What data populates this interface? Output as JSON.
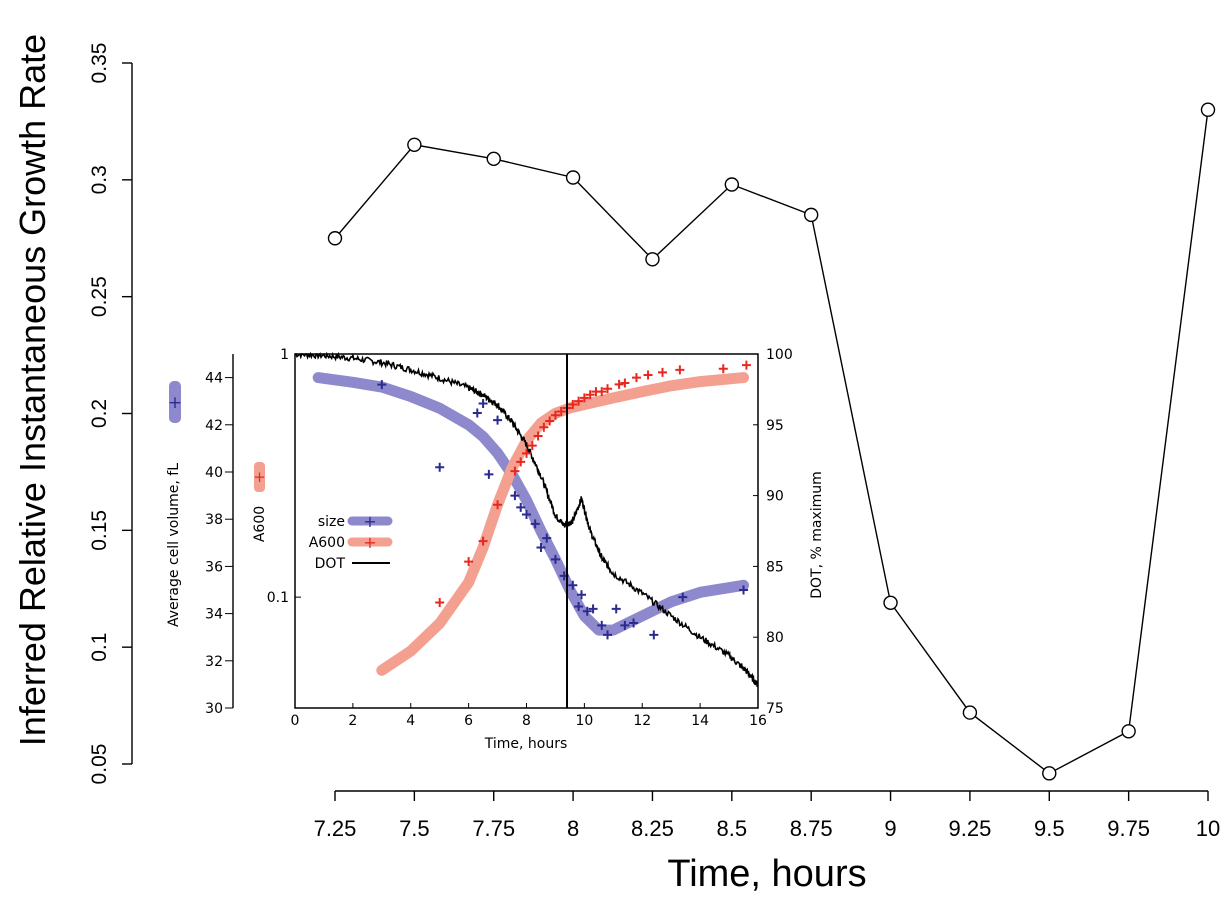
{
  "chart_data": [
    {
      "type": "line",
      "xlabel": "Time, hours",
      "ylabel": "Inferred Relative Instantaneous Growth Rate",
      "x_ticks": [
        "7.25",
        "7.5",
        "7.75",
        "8",
        "8.25",
        "8.5",
        "8.75",
        "9",
        "9.25",
        "9.5",
        "9.75",
        "10"
      ],
      "y_ticks": [
        "0.05",
        "0.1",
        "0.15",
        "0.2",
        "0.25",
        "0.3",
        "0.35"
      ],
      "xlim": [
        7.25,
        10
      ],
      "ylim": [
        0.05,
        0.35
      ],
      "grid": false,
      "series": [
        {
          "marker": "open-circle",
          "color": "#000000",
          "x": [
            7.25,
            7.5,
            7.75,
            8,
            8.25,
            8.5,
            8.75,
            9,
            9.25,
            9.5,
            9.75,
            10
          ],
          "y": [
            0.275,
            0.315,
            0.309,
            0.301,
            0.266,
            0.298,
            0.285,
            0.119,
            0.072,
            0.046,
            0.064,
            0.33
          ]
        }
      ]
    },
    {
      "type": "line",
      "xlabel": "Time, hours",
      "ylabel_left_outer": "Average cell volume, fL",
      "ylabel_left_inner": "A600",
      "ylabel_right": "DOT, % maximum",
      "x_ticks": [
        "0",
        "2",
        "4",
        "6",
        "8",
        "10",
        "12",
        "14",
        "16"
      ],
      "xlim": [
        0,
        16
      ],
      "volume_ticks": [
        "30",
        "32",
        "34",
        "36",
        "38",
        "40",
        "42",
        "44"
      ],
      "volume_lim": [
        30,
        45
      ],
      "a600_ticks": [
        "1",
        "0.1"
      ],
      "a600_scale": "log",
      "a600_lim": [
        0.035,
        1
      ],
      "dot_ticks": [
        "75",
        "80",
        "85",
        "90",
        "95",
        "100"
      ],
      "dot_lim": [
        75,
        100
      ],
      "vertical_line_x": 9.4,
      "legend": {
        "position": "left-middle",
        "entries": [
          "size",
          "A600",
          "DOT"
        ]
      },
      "colors": {
        "size": "#2b2b8f",
        "size_fit": "#8e88cc",
        "a600": "#e8281e",
        "a600_fit": "#f4a090",
        "dot": "#000000"
      },
      "size_points": {
        "x": [
          3,
          5,
          6.3,
          6.5,
          6.7,
          7,
          7.6,
          7.8,
          8,
          8.3,
          8.5,
          8.7,
          9.0,
          9.3,
          9.6,
          9.8,
          9.9,
          10.1,
          10.3,
          10.6,
          10.8,
          11.1,
          11.4,
          11.7,
          12.4,
          13.4,
          15.5
        ],
        "y": [
          43.7,
          40.2,
          42.5,
          42.9,
          39.9,
          42.2,
          39.0,
          38.5,
          38.2,
          37.8,
          36.8,
          37.2,
          36.3,
          35.6,
          35.2,
          34.3,
          34.8,
          34.1,
          34.2,
          33.5,
          33.1,
          34.2,
          33.5,
          33.6,
          33.1,
          34.7,
          35.0
        ]
      },
      "size_fit": {
        "x": [
          0.8,
          2,
          3,
          4,
          5,
          6,
          6.5,
          7,
          7.5,
          8,
          8.5,
          9,
          9.5,
          10,
          10.5,
          11,
          12,
          13,
          14,
          15.5
        ],
        "y": [
          44.0,
          43.8,
          43.6,
          43.2,
          42.7,
          42.0,
          41.5,
          40.8,
          39.9,
          38.8,
          37.5,
          36.3,
          35.0,
          33.9,
          33.3,
          33.3,
          33.9,
          34.5,
          34.9,
          35.2
        ]
      },
      "a600_points": {
        "x": [
          5,
          6,
          6.5,
          7,
          7.6,
          7.8,
          8,
          8.2,
          8.4,
          8.6,
          8.8,
          9.0,
          9.2,
          9.4,
          9.6,
          9.8,
          10,
          10.2,
          10.4,
          10.6,
          10.8,
          11.2,
          11.4,
          11.8,
          12.2,
          12.7,
          13.3,
          14.8,
          15.6
        ],
        "y": [
          0.095,
          0.14,
          0.17,
          0.24,
          0.33,
          0.36,
          0.39,
          0.42,
          0.46,
          0.5,
          0.53,
          0.56,
          0.58,
          0.6,
          0.62,
          0.64,
          0.66,
          0.68,
          0.7,
          0.7,
          0.72,
          0.75,
          0.76,
          0.8,
          0.82,
          0.84,
          0.86,
          0.87,
          0.9
        ]
      },
      "a600_fit": {
        "x": [
          3,
          4,
          5,
          6,
          6.5,
          7,
          7.5,
          8,
          8.5,
          9,
          9.5,
          10,
          11,
          12,
          13,
          14,
          15.5
        ],
        "y": [
          0.05,
          0.06,
          0.078,
          0.115,
          0.16,
          0.24,
          0.34,
          0.44,
          0.52,
          0.57,
          0.6,
          0.62,
          0.66,
          0.7,
          0.74,
          0.77,
          0.8
        ]
      },
      "dot_line": {
        "x": [
          0,
          1,
          2,
          3,
          4,
          5,
          6,
          6.5,
          7,
          7.5,
          8,
          8.5,
          9,
          9.3,
          9.6,
          9.9,
          10.2,
          10.6,
          11,
          12,
          13,
          14,
          15,
          15.6,
          16
        ],
        "y": [
          100,
          99.9,
          99.7,
          99.4,
          98.9,
          98.3,
          97.6,
          97.1,
          96.4,
          95.2,
          93.6,
          91.4,
          88.6,
          87.9,
          88.2,
          89.8,
          87.5,
          85.6,
          84.5,
          83.1,
          81.5,
          80.0,
          78.7,
          77.6,
          76.6
        ]
      }
    }
  ]
}
